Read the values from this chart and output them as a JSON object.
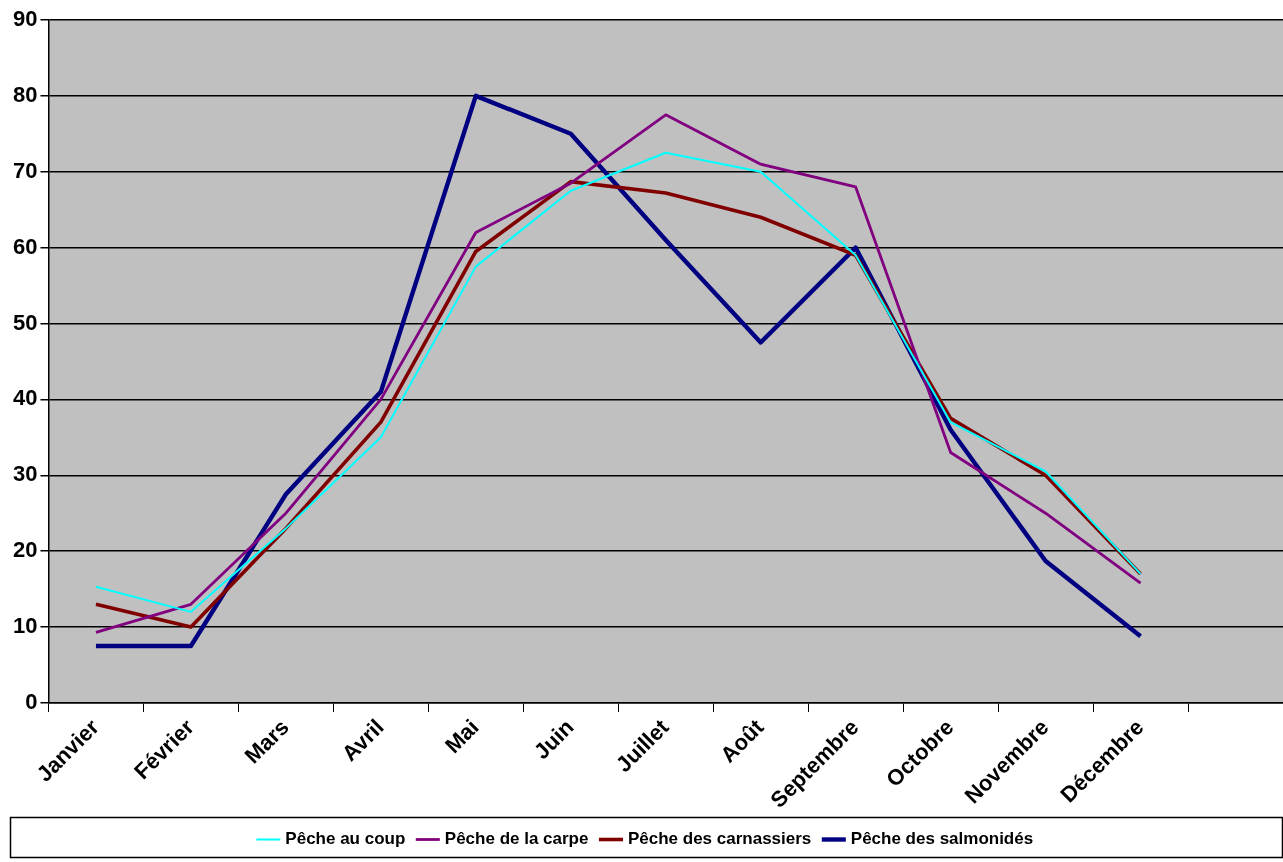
{
  "chart_data": {
    "type": "line",
    "categories": [
      "Janvier",
      "Février",
      "Mars",
      "Avril",
      "Mai",
      "Juin",
      "Juillet",
      "Août",
      "Septembre",
      "Octobre",
      "Novembre",
      "Décembre",
      null
    ],
    "series": [
      {
        "name": "Pêche au coup",
        "color": "#00ffff",
        "values": [
          15.3,
          12,
          23,
          35,
          57.5,
          67.5,
          72.5,
          70,
          59,
          37,
          30.5,
          17,
          null
        ]
      },
      {
        "name": "Pêche de la carpe",
        "color": "#800080",
        "values": [
          9.3,
          13,
          25,
          40,
          62,
          68.5,
          77.5,
          71,
          68,
          33,
          25,
          15.8,
          null
        ]
      },
      {
        "name": "Pêche des carnassiers",
        "color": "#800000",
        "values": [
          13,
          10,
          23,
          37,
          59.5,
          68.7,
          67.2,
          64,
          59,
          37.5,
          30,
          17,
          null
        ]
      },
      {
        "name": "Pêche des salmonidés",
        "color": "#000080",
        "values": [
          7.5,
          7.5,
          27.5,
          41,
          80,
          75,
          61,
          47.5,
          60,
          36,
          18.7,
          8.8,
          null
        ]
      }
    ],
    "ylim": [
      0,
      90
    ],
    "yticks": [
      0,
      10,
      20,
      30,
      40,
      50,
      60,
      70,
      80,
      90
    ],
    "grid": "y",
    "legend": "bottom",
    "marker": "none",
    "line_style": "solid"
  }
}
